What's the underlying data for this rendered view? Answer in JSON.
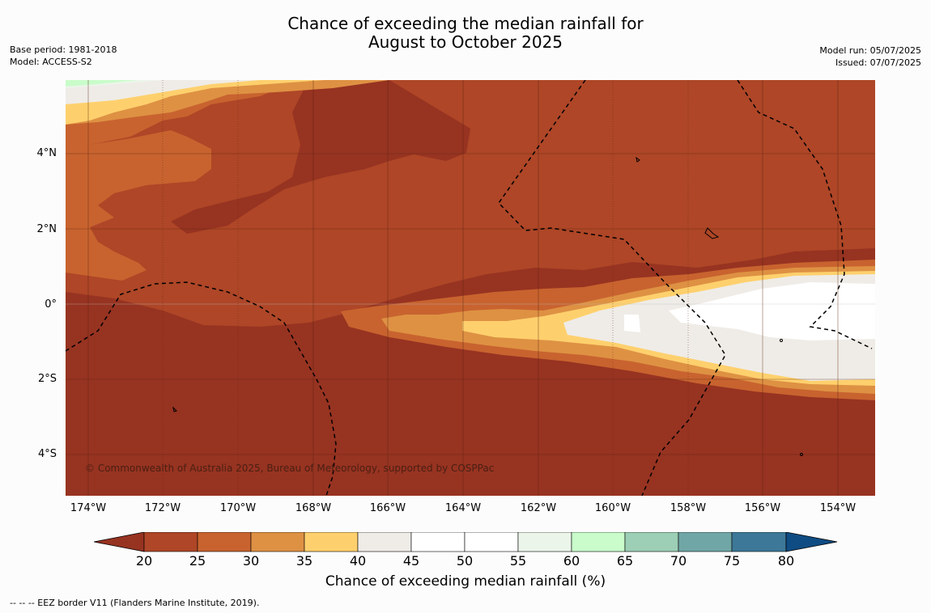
{
  "title": {
    "line1": "Chance of exceeding the median rainfall for",
    "line2": "August to October 2025"
  },
  "meta_left": {
    "base_period": "Base period: 1981-2018",
    "model": "Model: ACCESS-S2"
  },
  "meta_right": {
    "model_run": "Model run: 05/07/2025",
    "issued": "Issued: 07/07/2025"
  },
  "map": {
    "lat_labels": [
      "4°N",
      "2°N",
      "0°",
      "2°S",
      "4°S"
    ],
    "lon_labels": [
      "174°W",
      "172°W",
      "170°W",
      "168°W",
      "166°W",
      "164°W",
      "162°W",
      "160°W",
      "158°W",
      "156°W",
      "154°W"
    ],
    "copyright": "© Commonwealth of Australia 2025, Bureau of Meteorology, supported by COSPPac"
  },
  "colorbar": {
    "ticks": [
      "20",
      "25",
      "30",
      "35",
      "40",
      "45",
      "50",
      "55",
      "60",
      "65",
      "70",
      "75",
      "80"
    ],
    "label": "Chance of exceeding median rainfall (%)",
    "colors": {
      "lt20": "#973321",
      "20-25": "#ae4627",
      "25-30": "#c8632f",
      "30-35": "#de9143",
      "35-40": "#fed06d",
      "40-45": "#efece7",
      "45-50": "#ffffff",
      "50-55": "#ffffff",
      "55-60": "#ecf5ea",
      "60-65": "#c9fcca",
      "65-70": "#9ccfb5",
      "70-75": "#71a6a6",
      "75-80": "#3d7898",
      "gt80": "#0f4c83"
    }
  },
  "footnote": "--  --  -- EEZ border V11 (Flanders Marine Institute, 2019)."
}
